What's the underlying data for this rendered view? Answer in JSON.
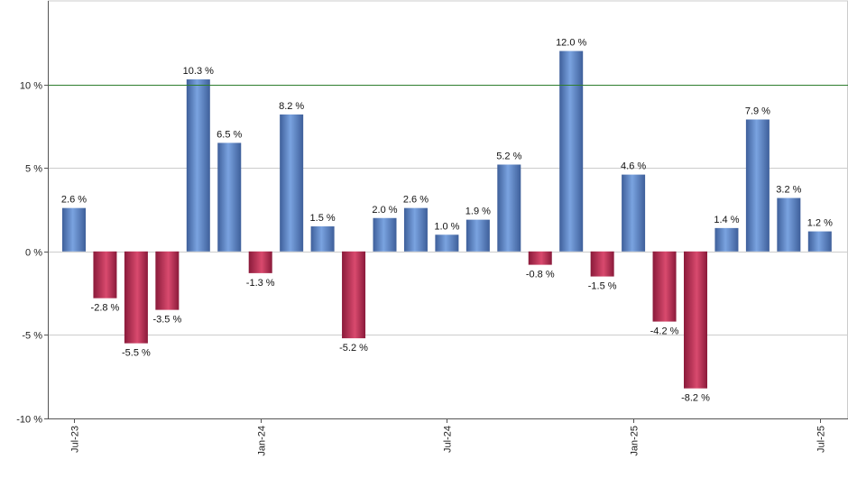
{
  "chart_data": {
    "type": "bar",
    "title": "",
    "xlabel": "",
    "ylabel": "",
    "ylim": [
      -10,
      15
    ],
    "yticks": [
      -10,
      -5,
      0,
      5,
      10
    ],
    "ytick_labels": [
      "-10 %",
      "-5 %",
      "0 %",
      "5 %",
      "10 %"
    ],
    "xtick_labels": [
      {
        "index": 0,
        "label": "Jul-23"
      },
      {
        "index": 6,
        "label": "Jan-24"
      },
      {
        "index": 12,
        "label": "Jul-24"
      },
      {
        "index": 18,
        "label": "Jan-25"
      },
      {
        "index": 24,
        "label": "Jul-25"
      }
    ],
    "values": [
      2.6,
      -2.8,
      -5.5,
      -3.5,
      10.3,
      6.5,
      -1.3,
      8.2,
      1.5,
      -5.2,
      2.0,
      2.6,
      1.0,
      1.9,
      5.2,
      -0.8,
      12.0,
      -1.5,
      4.6,
      -4.2,
      -8.2,
      1.4,
      7.9,
      3.2,
      1.2
    ],
    "value_labels": [
      "2.6 %",
      "-2.8 %",
      "-5.5 %",
      "-3.5 %",
      "10.3 %",
      "6.5 %",
      "-1.3 %",
      "8.2 %",
      "1.5 %",
      "-5.2 %",
      "2.0 %",
      "2.6 %",
      "1.0 %",
      "1.9 %",
      "5.2 %",
      "-0.8 %",
      "12.0 %",
      "-1.5 %",
      "4.6 %",
      "-4.2 %",
      "-8.2 %",
      "1.4 %",
      "7.9 %",
      "3.2 %",
      "1.2 %"
    ],
    "reference_line": {
      "value": 10,
      "color": "#2e7d2e"
    },
    "grid": true,
    "legend": "none",
    "colors": {
      "positive": "#7aa3e0",
      "positive_dark": "#3e5f9a",
      "negative": "#d94a6e",
      "negative_dark": "#8a1a3a",
      "grid": "#cccccc",
      "axis": "#555555"
    }
  }
}
